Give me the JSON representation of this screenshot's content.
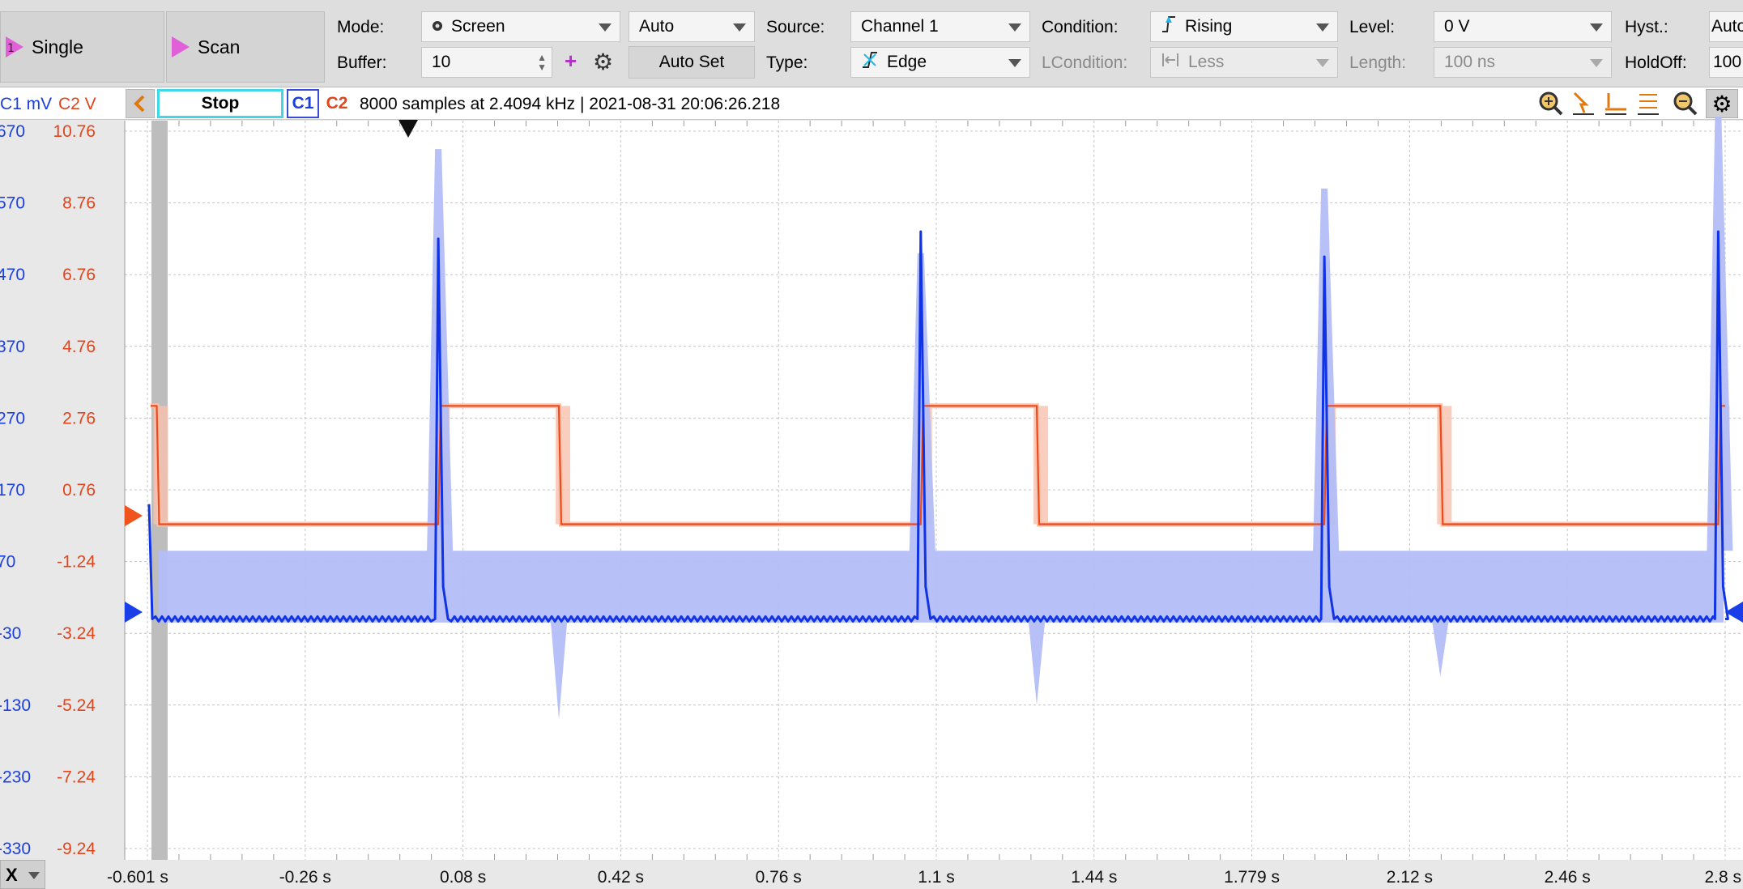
{
  "toolbar": {
    "single_label": "Single",
    "scan_label": "Scan",
    "mode_label": "Mode:",
    "mode_value": "Screen",
    "mode_extra_value": "Auto",
    "buffer_label": "Buffer:",
    "buffer_value": "10",
    "auto_set_label": "Auto Set",
    "source_label": "Source:",
    "source_value": "Channel 1",
    "type_label": "Type:",
    "type_value": "Edge",
    "condition_label": "Condition:",
    "condition_value": "Rising",
    "lcondition_label": "LCondition:",
    "lcondition_value": "Less",
    "level_label": "Level:",
    "level_value": "0 V",
    "length_label": "Length:",
    "length_value": "100 ns",
    "hyst_label": "Hyst.:",
    "hyst_value": "Auto",
    "holdoff_label": "HoldOff:",
    "holdoff_value": "100"
  },
  "header": {
    "stop_label": "Stop",
    "c1_label": "C1",
    "c2_label": "C2",
    "info": "8000 samples at 2.4094 kHz | 2021-08-31 20:06:26.218",
    "c1_unit": "C1 mV",
    "c2_unit": "C2 V"
  },
  "colors": {
    "c1": "#1033e6",
    "c1_envelope": "#b3bdf7",
    "c2": "#ee4a1a",
    "c2_envelope": "#f7c2ae",
    "c1_axis": "#1a3fe0",
    "c2_axis": "#e0451b"
  },
  "chart_data": {
    "type": "line",
    "x_unit": "s",
    "x_range": [
      -0.601,
      2.8
    ],
    "x_ticks": [
      "-0.601 s",
      "-0.26 s",
      "0.08 s",
      "0.42 s",
      "0.76 s",
      "1.1 s",
      "1.44 s",
      "1.779 s",
      "2.12 s",
      "2.46 s",
      "2.8 s"
    ],
    "y1_ticks": [
      "670",
      "570",
      "470",
      "370",
      "270",
      "170",
      "70",
      "-30",
      "-130",
      "-230",
      "-330"
    ],
    "y1_range": [
      -330,
      670
    ],
    "y2_ticks": [
      "10.76",
      "8.76",
      "6.76",
      "4.76",
      "2.76",
      "0.76",
      "-1.24",
      "-3.24",
      "-5.24",
      "-7.24",
      "-9.24"
    ],
    "y2_range": [
      -9.24,
      10.76
    ],
    "series": [
      {
        "name": "C1",
        "axis": "y1",
        "baseline": -10,
        "spikes": [
          {
            "t": -0.601,
            "peak": 150
          },
          {
            "t": 0.026,
            "peak": 520
          },
          {
            "t": 1.066,
            "peak": 530
          },
          {
            "t": 1.936,
            "peak": 495
          },
          {
            "t": 2.785,
            "peak": 530
          }
        ],
        "envelope_band": [
          -15,
          85
        ],
        "envelope_spikes": [
          {
            "t": 0.026,
            "peak": 645
          },
          {
            "t": 1.066,
            "peak": 500
          },
          {
            "t": 1.936,
            "peak": 590
          },
          {
            "t": 2.785,
            "peak": 690
          }
        ],
        "envelope_dips": [
          {
            "t": 0.286,
            "low": -150
          },
          {
            "t": 1.316,
            "low": -130
          },
          {
            "t": 2.186,
            "low": -90
          }
        ]
      },
      {
        "name": "C2",
        "axis": "y2",
        "high": 3.1,
        "low": -0.2,
        "edges": [
          {
            "t": -0.581,
            "level": "low"
          },
          {
            "t": 0.026,
            "level": "high"
          },
          {
            "t": 0.286,
            "level": "low"
          },
          {
            "t": 1.066,
            "level": "high"
          },
          {
            "t": 1.316,
            "level": "low"
          },
          {
            "t": 1.936,
            "level": "high"
          },
          {
            "t": 2.186,
            "level": "low"
          },
          {
            "t": 2.785,
            "level": "high"
          }
        ]
      }
    ]
  },
  "footer": {
    "x_label": "X"
  }
}
